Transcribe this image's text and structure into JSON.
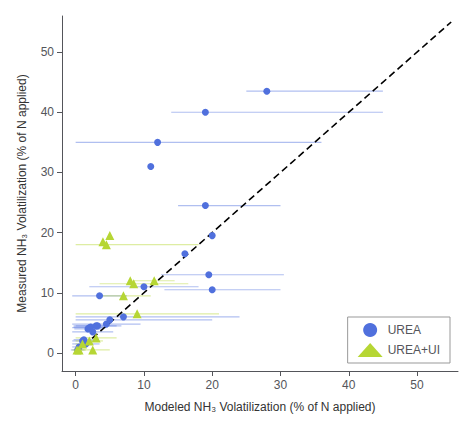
{
  "chart_data": {
    "type": "scatter",
    "xlabel": "Modeled NH₃ Volatilization (% of N applied)",
    "ylabel": "Measured NH₃ Volatilization (% of N applied)",
    "xlim": [
      -2,
      56
    ],
    "ylim": [
      -3,
      56
    ],
    "xticks": [
      0,
      10,
      20,
      30,
      40,
      50
    ],
    "yticks": [
      0,
      10,
      20,
      30,
      40,
      50
    ],
    "grid": false,
    "legend": "lower right",
    "series": [
      {
        "name": "UREA",
        "type": "scatter",
        "marker": "circle",
        "x": [
          0.3,
          0.5,
          1.0,
          1.2,
          1.5,
          1.8,
          2.0,
          2.2,
          2.5,
          3.0,
          3.2,
          3.5,
          4.5,
          5.0,
          7.0,
          10.0,
          11.0,
          12.0,
          16.0,
          19.0,
          19.5,
          20.0,
          20.0,
          28.0,
          19.0
        ],
        "y": [
          0.5,
          1.0,
          2.0,
          2.2,
          1.5,
          4.0,
          4.2,
          4.3,
          3.5,
          4.5,
          4.5,
          9.5,
          4.8,
          5.5,
          6.0,
          11.0,
          31.0,
          35.0,
          16.5,
          40.0,
          13.0,
          10.5,
          19.5,
          43.5,
          24.5
        ],
        "xerr_lo": [
          1.0,
          1.0,
          1.5,
          1.5,
          2.0,
          2.0,
          2.5,
          2.5,
          3.0,
          3.0,
          3.5,
          4.0,
          5.0,
          5.0,
          7.0,
          8.0,
          0.0,
          12.0,
          0.0,
          5.0,
          7.0,
          7.0,
          0.0,
          3.0,
          4.0
        ],
        "xerr_hi": [
          1.0,
          1.0,
          1.5,
          1.5,
          2.0,
          2.0,
          2.5,
          2.5,
          3.0,
          3.0,
          3.5,
          4.0,
          5.0,
          15.0,
          17.0,
          8.0,
          0.0,
          24.0,
          0.0,
          26.0,
          11.0,
          10.0,
          0.0,
          17.0,
          11.0
        ]
      },
      {
        "name": "UREA+UI",
        "type": "scatter",
        "marker": "triangle",
        "x": [
          0.2,
          0.5,
          1.0,
          2.0,
          2.5,
          3.0,
          4.0,
          4.5,
          5.0,
          7.0,
          8.0,
          8.5,
          9.0,
          11.5
        ],
        "y": [
          0.5,
          0.5,
          1.5,
          2.0,
          0.5,
          2.5,
          18.5,
          18.0,
          19.5,
          9.5,
          12.0,
          11.5,
          6.5,
          12.0
        ],
        "xerr_lo": [
          0.5,
          1.0,
          1.0,
          2.0,
          2.5,
          3.0,
          0.0,
          4.5,
          0.0,
          4.0,
          0.0,
          5.0,
          9.0,
          3.0
        ],
        "xerr_hi": [
          0.5,
          1.0,
          1.0,
          2.0,
          2.5,
          3.0,
          0.0,
          13.5,
          0.0,
          4.0,
          0.0,
          8.0,
          12.0,
          3.0
        ]
      },
      {
        "type": "line",
        "line_style": "dashed",
        "color": "black",
        "x": [
          0,
          55
        ],
        "y": [
          0,
          55
        ]
      }
    ]
  }
}
